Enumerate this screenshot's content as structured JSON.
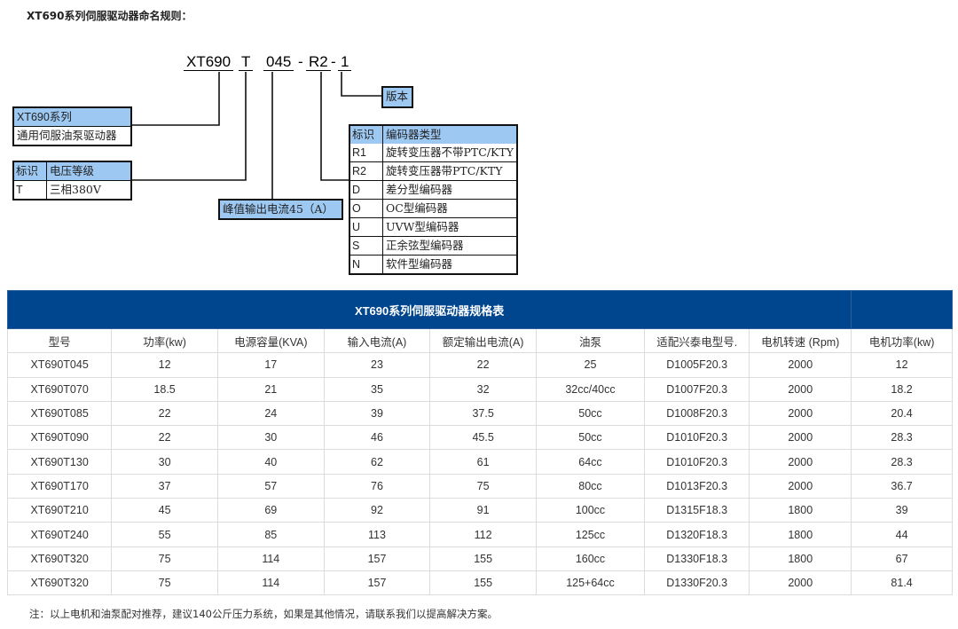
{
  "heading": "XT690系列伺服驱动器命名规则：",
  "naming_code": {
    "series": "XT690",
    "voltage": "T",
    "current": "045",
    "sep1": "-",
    "encoder": "R2",
    "sep2": "-",
    "version": "1"
  },
  "version_box": "版本",
  "series_box": {
    "header": "XT690系列",
    "desc": "通用伺服油泵驱动器"
  },
  "voltage_box": {
    "col1": "标识",
    "col2": "电压等级",
    "rows": [
      {
        "id": "T",
        "desc": "三相380V"
      }
    ]
  },
  "current_box": "峰值输出电流45（A）",
  "encoder_box": {
    "col1": "标识",
    "col2": "编码器类型",
    "rows": [
      {
        "id": "R1",
        "desc": "旋转变压器不带PTC/KTY"
      },
      {
        "id": "R2",
        "desc": "旋转变压器带PTC/KTY"
      },
      {
        "id": "D",
        "desc": "差分型编码器"
      },
      {
        "id": "O",
        "desc": "OC型编码器"
      },
      {
        "id": "U",
        "desc": "UVW型编码器"
      },
      {
        "id": "S",
        "desc": "正余弦型编码器"
      },
      {
        "id": "N",
        "desc": "软件型编码器"
      }
    ]
  },
  "spec_table": {
    "title": "XT690系列伺服驱动器规格表",
    "header_color": "#00468f",
    "columns": [
      "型号",
      "功率(kw)",
      "电源容量(KVA)",
      "输入电流(A)",
      "额定输出电流(A)",
      "油泵",
      "适配兴泰电型号.",
      "电机转速 (Rpm)",
      "电机功率(kw)"
    ],
    "rows": [
      [
        "XT690T045",
        "12",
        "17",
        "23",
        "22",
        "25",
        "D1005F20.3",
        "2000",
        "12"
      ],
      [
        "XT690T070",
        "18.5",
        "21",
        "35",
        "32",
        "32cc/40cc",
        "D1007F20.3",
        "2000",
        "18.2"
      ],
      [
        "XT690T085",
        "22",
        "24",
        "39",
        "37.5",
        "50cc",
        "D1008F20.3",
        "2000",
        "20.4"
      ],
      [
        "XT690T090",
        "22",
        "30",
        "46",
        "45.5",
        "50cc",
        "D1010F20.3",
        "2000",
        "28.3"
      ],
      [
        "XT690T130",
        "30",
        "40",
        "62",
        "61",
        "64cc",
        "D1010F20.3",
        "2000",
        "28.3"
      ],
      [
        "XT690T170",
        "37",
        "57",
        "76",
        "75",
        "80cc",
        "D1013F20.3",
        "2000",
        "36.7"
      ],
      [
        "XT690T210",
        "45",
        "69",
        "92",
        "91",
        "100cc",
        "D1315F18.3",
        "1800",
        "39"
      ],
      [
        "XT690T240",
        "55",
        "85",
        "113",
        "112",
        "125cc",
        "D1320F18.3",
        "1800",
        "44"
      ],
      [
        "XT690T320",
        "75",
        "114",
        "157",
        "155",
        "160cc",
        "D1330F18.3",
        "1800",
        "67"
      ],
      [
        "XT690T320",
        "75",
        "114",
        "157",
        "155",
        "125+64cc",
        "D1330F20.3",
        "2000",
        "81.4"
      ]
    ]
  },
  "note": "注：以上电机和油泵配对推荐，建议140公斤压力系统，如果是其他情况，请联系我们以提高解决方案。"
}
